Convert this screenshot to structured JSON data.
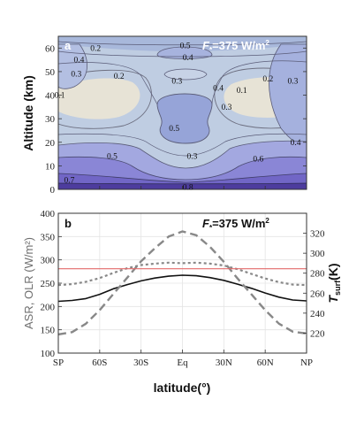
{
  "chart_data": [
    {
      "type": "contour",
      "panel_label": "a",
      "annotation": {
        "prefix": "F",
        "sub": "*",
        "text": "=375 W/m",
        "sup": "2"
      },
      "ylabel": "Altitude (km)",
      "ylim": [
        0,
        65
      ],
      "yticks": [
        "0",
        "10",
        "20",
        "30",
        "40",
        "50",
        "60"
      ],
      "xlim": [
        -90,
        90
      ],
      "contour_labels": [
        {
          "text": "0.2",
          "lat": -63,
          "alt": 60
        },
        {
          "text": "0.5",
          "lat": 2,
          "alt": 61
        },
        {
          "text": "0.4",
          "lat": 4,
          "alt": 56
        },
        {
          "text": "0.4",
          "lat": -75,
          "alt": 55
        },
        {
          "text": "0.3",
          "lat": -77,
          "alt": 49
        },
        {
          "text": "0.2",
          "lat": -46,
          "alt": 48
        },
        {
          "text": "0.3",
          "lat": -4,
          "alt": 46
        },
        {
          "text": "0.2",
          "lat": 62,
          "alt": 47
        },
        {
          "text": "0.3",
          "lat": 80,
          "alt": 46
        },
        {
          "text": "0.4",
          "lat": 26,
          "alt": 43
        },
        {
          "text": "0.1",
          "lat": 43,
          "alt": 42
        },
        {
          "text": "0.1",
          "lat": -89,
          "alt": 40
        },
        {
          "text": "0.3",
          "lat": 32,
          "alt": 35
        },
        {
          "text": "0.5",
          "lat": -6,
          "alt": 26
        },
        {
          "text": "0.4",
          "lat": 82,
          "alt": 20
        },
        {
          "text": "0.5",
          "lat": -51,
          "alt": 14
        },
        {
          "text": "0.3",
          "lat": 7,
          "alt": 14
        },
        {
          "text": "0.6",
          "lat": 55,
          "alt": 13
        },
        {
          "text": "0.7",
          "lat": -82,
          "alt": 4
        },
        {
          "text": "0.8",
          "lat": 4,
          "alt": 1
        }
      ]
    },
    {
      "type": "line",
      "panel_label": "b",
      "annotation": {
        "prefix": "F",
        "sub": "*",
        "text": "=375 W/m",
        "sup": "2"
      },
      "xlabel": "latitude(°)",
      "ylabel": "ASR, OLR (W/m²)",
      "y2label": {
        "main": "T",
        "sub": "surf",
        "tail": "(K)"
      },
      "xlim": [
        -90,
        90
      ],
      "ylim": [
        100,
        400
      ],
      "y2lim": [
        200,
        340
      ],
      "xtick_values": [
        -90,
        -60,
        -30,
        0,
        30,
        60,
        90
      ],
      "xticks": [
        "SP",
        "60S",
        "30S",
        "Eq",
        "30N",
        "60N",
        "NP"
      ],
      "ytick_values": [
        100,
        150,
        200,
        250,
        300,
        350,
        400
      ],
      "yticks": [
        "100",
        "150",
        "200",
        "250",
        "300",
        "350",
        "400"
      ],
      "y2tick_values": [
        220,
        240,
        260,
        280,
        300,
        320
      ],
      "y2ticks": [
        "220",
        "240",
        "260",
        "280",
        "300",
        "320"
      ],
      "grid": true,
      "series": [
        {
          "style": "solid",
          "color": "#111111",
          "axis": "left",
          "x": [
            -90,
            -80,
            -70,
            -60,
            -50,
            -40,
            -30,
            -20,
            -10,
            0,
            10,
            20,
            30,
            40,
            50,
            60,
            70,
            80,
            90
          ],
          "y": [
            211,
            213,
            217,
            226,
            238,
            247,
            255,
            261,
            265,
            267,
            266,
            262,
            256,
            248,
            239,
            229,
            220,
            214,
            212
          ]
        },
        {
          "style": "dotted",
          "color": "#888888",
          "axis": "left",
          "x": [
            -90,
            -80,
            -70,
            -60,
            -50,
            -40,
            -30,
            -20,
            -10,
            0,
            10,
            20,
            30,
            40,
            50,
            60,
            70,
            80,
            90
          ],
          "y": [
            246,
            248,
            253,
            261,
            272,
            282,
            289,
            292,
            294,
            293,
            294,
            292,
            288,
            280,
            270,
            260,
            252,
            247,
            246
          ]
        },
        {
          "style": "dashed",
          "color": "#888888",
          "axis": "left",
          "x": [
            -90,
            -80,
            -70,
            -60,
            -50,
            -40,
            -30,
            -20,
            -10,
            0,
            10,
            20,
            30,
            40,
            50,
            60,
            70,
            80,
            90
          ],
          "y": [
            140,
            145,
            163,
            192,
            227,
            262,
            297,
            325,
            350,
            361,
            353,
            328,
            296,
            260,
            226,
            192,
            163,
            146,
            142
          ]
        },
        {
          "style": "solid",
          "color": "#e36a6a",
          "axis": "left",
          "x": [
            -90,
            90
          ],
          "y": [
            281,
            281
          ]
        }
      ]
    }
  ]
}
